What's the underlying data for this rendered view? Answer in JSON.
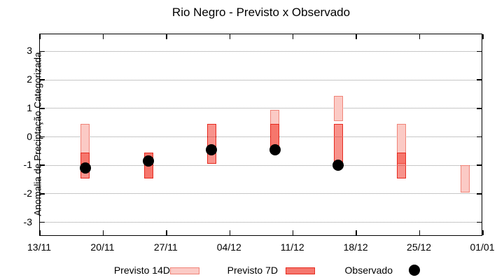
{
  "title": "Rio Negro - Previsto x Observado",
  "chart_data": {
    "type": "bar",
    "subtype": "forecast-range-boxes-with-observed-points",
    "title": "Rio Negro - Previsto x Observado",
    "xlabel": "",
    "ylabel": "Anomalia de Preciptação Categorizada",
    "ylim": [
      -3.5,
      3.6
    ],
    "yticks": [
      3,
      2,
      1,
      0,
      -1,
      -2,
      -3
    ],
    "xticks": [
      "13/11",
      "20/11",
      "27/11",
      "04/12",
      "11/12",
      "18/12",
      "25/12",
      "01/01"
    ],
    "xtick_days": [
      0,
      7,
      14,
      21,
      28,
      35,
      42,
      49
    ],
    "xlim_days": [
      0,
      49
    ],
    "grid": "horizontal-dotted",
    "legend_position": "below-axis",
    "series": [
      {
        "name": "Previsto 14D",
        "kind": "range-box"
      },
      {
        "name": "Previsto 7D",
        "kind": "range-box"
      },
      {
        "name": "Observado",
        "kind": "point"
      }
    ],
    "points": [
      {
        "date": "18/11",
        "day": 5,
        "previsto_14d": [
          0.45,
          -0.95
        ],
        "previsto_7d": [
          -0.55,
          -1.45
        ],
        "observado": -1.1
      },
      {
        "date": "25/11",
        "day": 12,
        "previsto_14d": [
          -0.55,
          -1.45
        ],
        "previsto_7d": [
          -0.55,
          -1.45
        ],
        "observado": -0.85
      },
      {
        "date": "02/12",
        "day": 19,
        "previsto_14d": null,
        "previsto_7d": [
          0.45,
          -0.95
        ],
        "observado": -0.45
      },
      {
        "date": "09/12",
        "day": 26,
        "previsto_14d": [
          0.95,
          -0.35
        ],
        "previsto_7d": [
          0.45,
          -0.35
        ],
        "observado": -0.45
      },
      {
        "date": "16/12",
        "day": 33,
        "previsto_14d": [
          1.45,
          0.55
        ],
        "previsto_7d": [
          0.45,
          -0.95
        ],
        "observado": -1.0
      },
      {
        "date": "23/12",
        "day": 40,
        "previsto_14d": [
          0.45,
          -0.95
        ],
        "previsto_7d": [
          -0.55,
          -1.45
        ],
        "observado": null
      },
      {
        "date": "30/12",
        "day": 47,
        "previsto_14d": [
          -1.0,
          -1.95
        ],
        "previsto_7d": null,
        "observado": null
      }
    ]
  },
  "legend": {
    "items": [
      {
        "label": "Previsto 14D"
      },
      {
        "label": "Previsto 7D"
      },
      {
        "label": "Observado"
      }
    ]
  },
  "colors": {
    "previsto_14d_fill": "#fbcac5",
    "previsto_14d_border": "#f08478",
    "previsto_7d_fill_rgba": "rgba(240,15,0,0.45)",
    "previsto_7d_border": "#e62b20",
    "previsto_7d_legend_fill": "#f5766d",
    "observado": "#000000",
    "grid": "#909090",
    "axis": "#000000"
  }
}
